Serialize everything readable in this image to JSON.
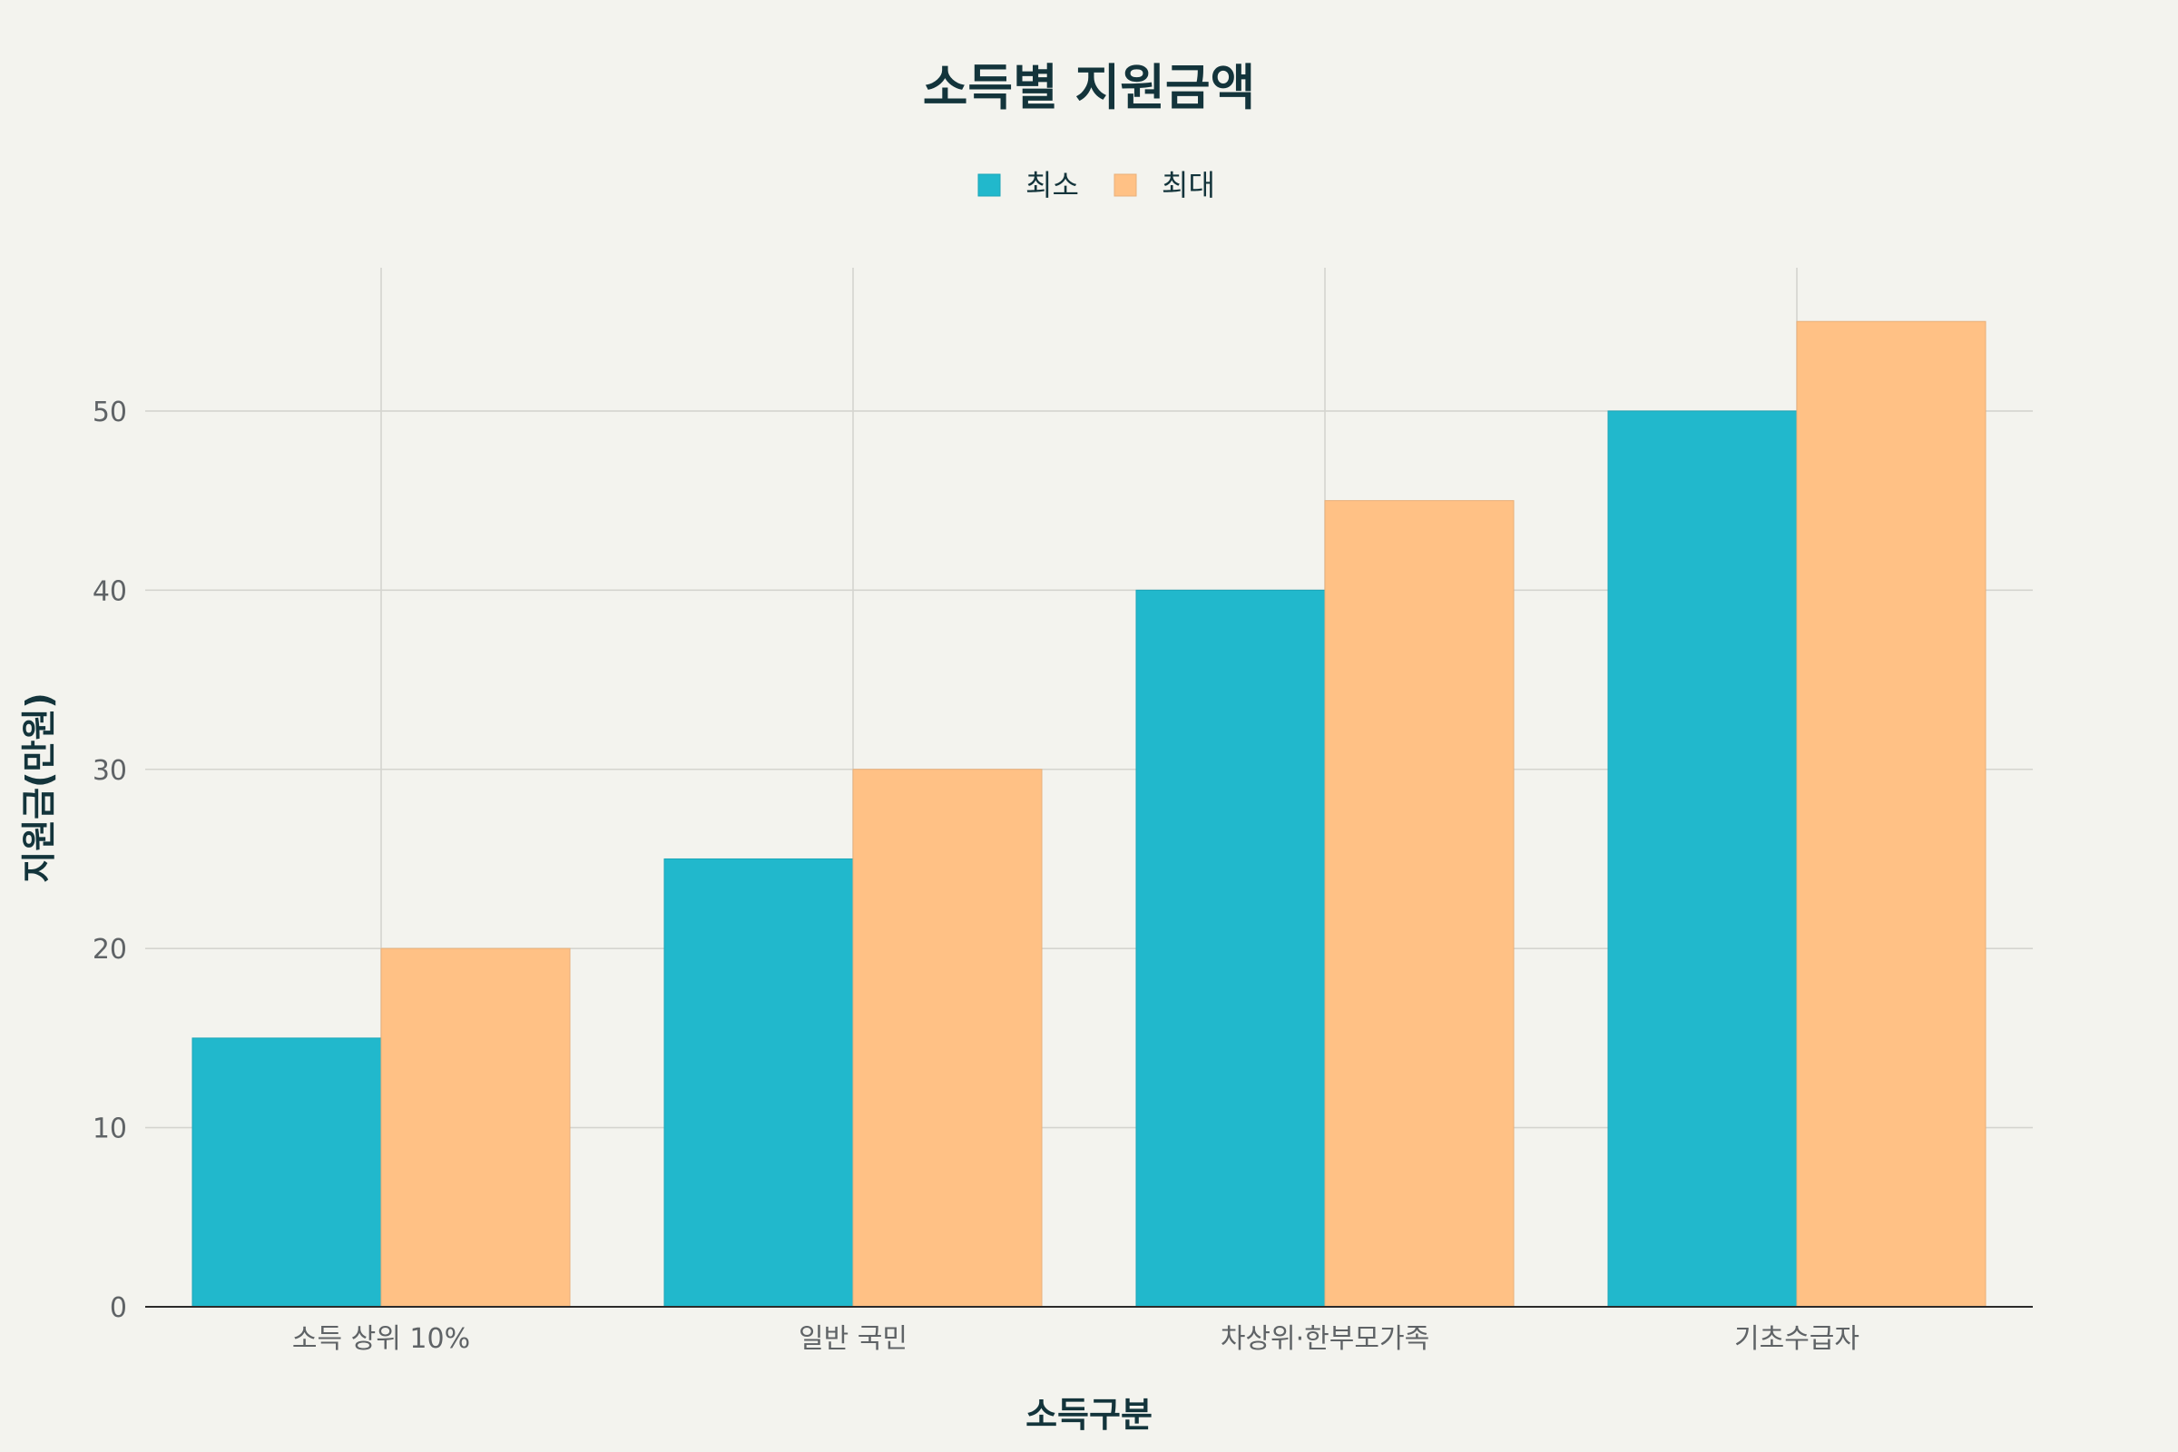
{
  "chart_data": {
    "type": "bar",
    "title": "소득별 지원금액",
    "xlabel": "소득구분",
    "ylabel": "지원금(만원)",
    "categories": [
      "소득 상위 10%",
      "일반 국민",
      "차상위·한부모가족",
      "기초수급자"
    ],
    "series": [
      {
        "name": "최소",
        "values": [
          15,
          25,
          40,
          50
        ],
        "color": "#21b8cc"
      },
      {
        "name": "최대",
        "values": [
          20,
          30,
          45,
          55
        ],
        "color": "#ffc185"
      }
    ],
    "ylim": [
      0,
      58
    ],
    "yticks": [
      0,
      10,
      20,
      30,
      40,
      50
    ],
    "grid": true,
    "legend_position": "top-center"
  }
}
